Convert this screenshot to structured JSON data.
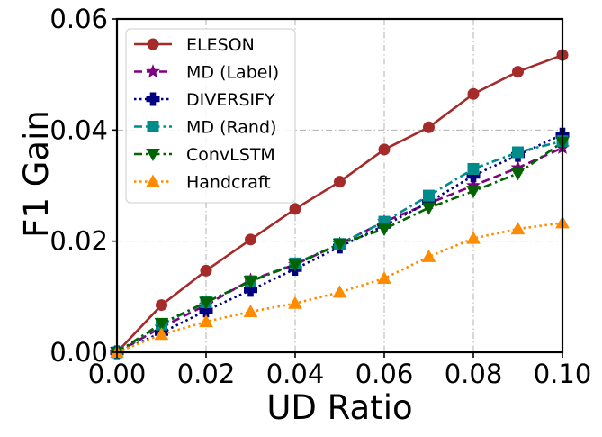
{
  "chart_data": {
    "type": "line",
    "title": "",
    "xlabel": "UD Ratio",
    "ylabel": "F1 Gain",
    "xlim": [
      0.0,
      0.1
    ],
    "ylim": [
      0.0,
      0.06
    ],
    "grid": true,
    "legend_position": "top-left",
    "x_ticks": [
      0.0,
      0.02,
      0.04,
      0.06,
      0.08,
      0.1
    ],
    "x_tick_labels": [
      "0.00",
      "0.02",
      "0.04",
      "0.06",
      "0.08",
      "0.10"
    ],
    "y_ticks": [
      0.0,
      0.02,
      0.04,
      0.06
    ],
    "y_tick_labels": [
      "0.00",
      "0.02",
      "0.04",
      "0.06"
    ],
    "x": [
      0.0,
      0.01,
      0.02,
      0.03,
      0.04,
      0.05,
      0.06,
      0.07,
      0.08,
      0.09,
      0.1
    ],
    "series": [
      {
        "name": "ELESON",
        "color": "#a52a2a",
        "line_style": "solid",
        "marker": "circle",
        "values": [
          0.0,
          0.0085,
          0.0147,
          0.0203,
          0.0258,
          0.0307,
          0.0365,
          0.0405,
          0.0465,
          0.0505,
          0.0535
        ]
      },
      {
        "name": "MD (Label)",
        "color": "#800080",
        "line_style": "dashed",
        "marker": "star",
        "values": [
          0.0,
          0.0045,
          0.0085,
          0.013,
          0.0158,
          0.0195,
          0.0235,
          0.0268,
          0.03,
          0.0332,
          0.0368
        ]
      },
      {
        "name": "DIVERSIFY",
        "color": "#000080",
        "line_style": "dotted",
        "marker": "plus",
        "values": [
          0.0,
          0.0035,
          0.0075,
          0.0112,
          0.015,
          0.019,
          0.0228,
          0.027,
          0.0318,
          0.0355,
          0.0392
        ]
      },
      {
        "name": "MD (Rand)",
        "color": "#008b8b",
        "line_style": "dashdot",
        "marker": "square",
        "values": [
          0.0,
          0.005,
          0.009,
          0.0128,
          0.016,
          0.0195,
          0.0235,
          0.0282,
          0.033,
          0.036,
          0.038
        ]
      },
      {
        "name": "ConvLSTM",
        "color": "#006400",
        "line_style": "dashdot",
        "marker": "triangle-down",
        "values": [
          0.0,
          0.0052,
          0.009,
          0.0128,
          0.0158,
          0.0195,
          0.0222,
          0.026,
          0.029,
          0.0322,
          0.0378
        ]
      },
      {
        "name": "Handcraft",
        "color": "#ff8c00",
        "line_style": "dotted",
        "marker": "triangle-up",
        "values": [
          0.0,
          0.0032,
          0.0055,
          0.0073,
          0.0088,
          0.0108,
          0.0133,
          0.0172,
          0.0205,
          0.0222,
          0.0233
        ]
      }
    ]
  }
}
